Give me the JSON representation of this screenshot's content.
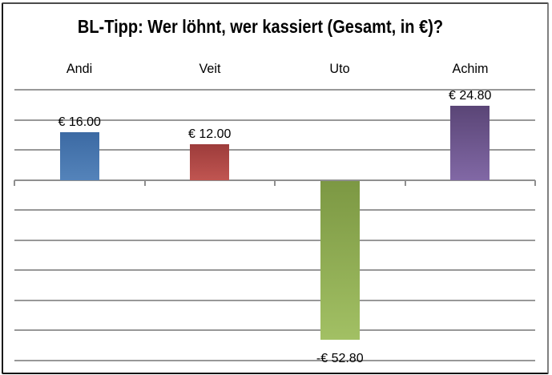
{
  "chart_data": {
    "type": "bar",
    "title": "BL-Tipp: Wer löhnt, wer kassiert (Gesamt, in €)?",
    "categories": [
      "Andi",
      "Veit",
      "Uto",
      "Achim"
    ],
    "values": [
      16.0,
      12.0,
      -52.8,
      24.8
    ],
    "data_labels": [
      "€ 16.00",
      "€ 12.00",
      "-€ 52.80",
      "€ 24.80"
    ],
    "bar_colors": [
      {
        "name": "blue",
        "top": "#3c6aa3",
        "bottom": "#5483ba"
      },
      {
        "name": "red",
        "top": "#9d3c3b",
        "bottom": "#c05551"
      },
      {
        "name": "green",
        "top": "#7c9843",
        "bottom": "#a2c064"
      },
      {
        "name": "purple",
        "top": "#5a4576",
        "bottom": "#8168a5"
      }
    ],
    "ylim": [
      -60,
      30
    ],
    "gridline_step": 10,
    "grid": true,
    "legend": "none",
    "y_axis_tick_labels_visible": false,
    "gridline_color": "#989898",
    "currency_format": "€ #.00"
  }
}
